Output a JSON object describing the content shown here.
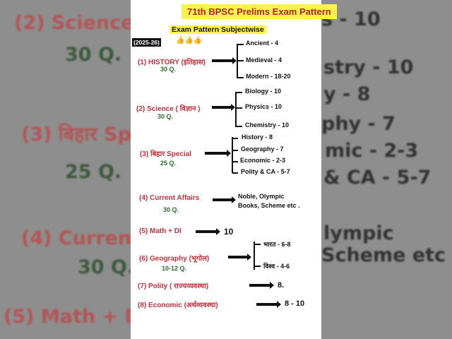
{
  "background": {
    "left": [
      "(2) Science ( वि",
      "30 Q.",
      "(3) बिहार Spec",
      "25 Q.",
      "(4) Current A",
      "30 Q.",
      "(5) Math + DI"
    ],
    "right": [
      "s - 10",
      "stry - 10",
      "y - 8",
      "phy - 7",
      "mic - 2-3",
      "& CA - 5-7",
      "lympic",
      "Scheme etc ."
    ]
  },
  "header": {
    "title": "71th BPSC Prelims Exam Pattern",
    "subtitle": "Exam Pattern Subjectwise",
    "year": "(2025-26)",
    "emoji": "👍👍👍"
  },
  "subjects": [
    {
      "label": "(1)  HISTORY (इतिहास)",
      "questions": "30 Q.",
      "items": [
        "Ancient - 4",
        "Medieval - 4",
        "Modern - 18-20"
      ]
    },
    {
      "label": "(2) Science ( विज्ञान )",
      "questions": "30 Q.",
      "items": [
        "Biology - 10",
        "Physics - 10",
        "Chemistry - 10"
      ]
    },
    {
      "label": "(3) बिहार Special",
      "questions": "25 Q.",
      "items": [
        "History - 8",
        "Geography - 7",
        "Economic - 2-3",
        "Polity & CA - 5-7"
      ]
    },
    {
      "label": "(4) Current Affairs",
      "questions": "30 Q.",
      "items": [
        "Noble, Olympic",
        "Books, Scheme etc ."
      ]
    },
    {
      "label": "(5) Math + DI",
      "items": [
        "10"
      ]
    },
    {
      "label": "(6) Geography (भूगोल)",
      "questions": "10-12 Q.",
      "items": [
        "भारत - 6-8",
        "विश्व - 4-6"
      ]
    },
    {
      "label": "(7) Polity ( राज्यव्यवस्था)",
      "items": [
        "8."
      ]
    },
    {
      "label": "(8) Economic (अर्थव्यवस्था)",
      "items": [
        "8 - 10"
      ]
    }
  ]
}
